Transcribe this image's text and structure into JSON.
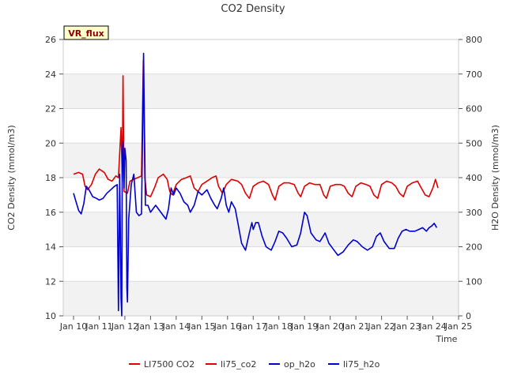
{
  "chart_data": {
    "type": "line",
    "title": "CO2 Density",
    "badge": "VR_flux",
    "xlabel": "Time",
    "ylabel_left": "CO2 Density (mmol/m3)",
    "ylabel_right": "H2O Density (mmol/m3)",
    "xlim": [
      9.6,
      25.0
    ],
    "ylim_left": [
      10,
      26
    ],
    "ylim_right": [
      0,
      800
    ],
    "x_ticks": [
      {
        "x": 10,
        "label": "Jan 10"
      },
      {
        "x": 11,
        "label": "Jan 11"
      },
      {
        "x": 12,
        "label": "Jan 12"
      },
      {
        "x": 13,
        "label": "Jan 13"
      },
      {
        "x": 14,
        "label": "Jan 14"
      },
      {
        "x": 15,
        "label": "Jan 15"
      },
      {
        "x": 16,
        "label": "Jan 16"
      },
      {
        "x": 17,
        "label": "Jan 17"
      },
      {
        "x": 18,
        "label": "Jan 18"
      },
      {
        "x": 19,
        "label": "Jan 19"
      },
      {
        "x": 20,
        "label": "Jan 20"
      },
      {
        "x": 21,
        "label": "Jan 21"
      },
      {
        "x": 22,
        "label": "Jan 22"
      },
      {
        "x": 23,
        "label": "Jan 23"
      },
      {
        "x": 24,
        "label": "Jan 24"
      },
      {
        "x": 25,
        "label": "Jan 25"
      }
    ],
    "y_ticks_left": [
      "10",
      "12",
      "14",
      "16",
      "18",
      "20",
      "22",
      "24",
      "26"
    ],
    "y_ticks_right": [
      "0",
      "100",
      "200",
      "300",
      "400",
      "500",
      "600",
      "700",
      "800"
    ],
    "legend_position": "bottom-center",
    "series": [
      {
        "name": "LI7500 CO2",
        "axis": "left",
        "color": "#dd0000",
        "points": []
      },
      {
        "name": "li75_co2",
        "axis": "left",
        "color": "#dd0000",
        "points": [
          [
            10.0,
            18.2
          ],
          [
            10.2,
            18.3
          ],
          [
            10.35,
            18.2
          ],
          [
            10.45,
            17.5
          ],
          [
            10.55,
            17.3
          ],
          [
            10.7,
            17.6
          ],
          [
            10.85,
            18.2
          ],
          [
            11.0,
            18.5
          ],
          [
            11.2,
            18.3
          ],
          [
            11.35,
            17.9
          ],
          [
            11.5,
            17.8
          ],
          [
            11.65,
            18.1
          ],
          [
            11.75,
            18.0
          ],
          [
            11.85,
            20.9
          ],
          [
            11.9,
            17.8
          ],
          [
            11.93,
            23.9
          ],
          [
            11.97,
            17.2
          ],
          [
            12.1,
            17.1
          ],
          [
            12.2,
            17.8
          ],
          [
            12.5,
            18.0
          ],
          [
            12.65,
            18.1
          ],
          [
            12.72,
            24.8
          ],
          [
            12.78,
            18.0
          ],
          [
            12.85,
            17.0
          ],
          [
            13.0,
            16.9
          ],
          [
            13.15,
            17.4
          ],
          [
            13.3,
            18.0
          ],
          [
            13.5,
            18.2
          ],
          [
            13.65,
            17.9
          ],
          [
            13.75,
            17.2
          ],
          [
            13.85,
            17.0
          ],
          [
            14.0,
            17.6
          ],
          [
            14.2,
            17.9
          ],
          [
            14.4,
            18.0
          ],
          [
            14.55,
            18.1
          ],
          [
            14.7,
            17.4
          ],
          [
            14.85,
            17.2
          ],
          [
            15.0,
            17.6
          ],
          [
            15.2,
            17.8
          ],
          [
            15.4,
            18.0
          ],
          [
            15.55,
            18.1
          ],
          [
            15.65,
            17.5
          ],
          [
            15.8,
            17.1
          ],
          [
            15.95,
            17.6
          ],
          [
            16.15,
            17.9
          ],
          [
            16.4,
            17.8
          ],
          [
            16.55,
            17.6
          ],
          [
            16.7,
            17.1
          ],
          [
            16.85,
            16.8
          ],
          [
            17.0,
            17.5
          ],
          [
            17.2,
            17.7
          ],
          [
            17.4,
            17.8
          ],
          [
            17.6,
            17.6
          ],
          [
            17.75,
            17.0
          ],
          [
            17.85,
            16.7
          ],
          [
            18.0,
            17.5
          ],
          [
            18.2,
            17.7
          ],
          [
            18.4,
            17.7
          ],
          [
            18.6,
            17.6
          ],
          [
            18.75,
            17.1
          ],
          [
            18.85,
            16.9
          ],
          [
            19.0,
            17.5
          ],
          [
            19.2,
            17.7
          ],
          [
            19.4,
            17.6
          ],
          [
            19.6,
            17.6
          ],
          [
            19.75,
            17.0
          ],
          [
            19.85,
            16.8
          ],
          [
            20.0,
            17.5
          ],
          [
            20.2,
            17.6
          ],
          [
            20.4,
            17.6
          ],
          [
            20.55,
            17.5
          ],
          [
            20.7,
            17.1
          ],
          [
            20.85,
            16.9
          ],
          [
            21.0,
            17.5
          ],
          [
            21.2,
            17.7
          ],
          [
            21.4,
            17.6
          ],
          [
            21.55,
            17.5
          ],
          [
            21.7,
            17.0
          ],
          [
            21.85,
            16.8
          ],
          [
            22.0,
            17.6
          ],
          [
            22.2,
            17.8
          ],
          [
            22.4,
            17.7
          ],
          [
            22.55,
            17.5
          ],
          [
            22.7,
            17.1
          ],
          [
            22.85,
            16.9
          ],
          [
            23.0,
            17.5
          ],
          [
            23.2,
            17.7
          ],
          [
            23.4,
            17.8
          ],
          [
            23.55,
            17.4
          ],
          [
            23.7,
            17.0
          ],
          [
            23.85,
            16.9
          ],
          [
            24.0,
            17.4
          ],
          [
            24.1,
            17.9
          ],
          [
            24.2,
            17.4
          ]
        ]
      },
      {
        "name": "op_h2o",
        "axis": "right",
        "color": "#0000cc",
        "points": []
      },
      {
        "name": "li75_h2o",
        "axis": "right",
        "color": "#0000cc",
        "points": [
          [
            10.0,
            355
          ],
          [
            10.1,
            330
          ],
          [
            10.2,
            305
          ],
          [
            10.3,
            295
          ],
          [
            10.4,
            325
          ],
          [
            10.5,
            375
          ],
          [
            10.6,
            365
          ],
          [
            10.75,
            345
          ],
          [
            10.9,
            340
          ],
          [
            11.0,
            335
          ],
          [
            11.15,
            340
          ],
          [
            11.3,
            355
          ],
          [
            11.45,
            365
          ],
          [
            11.6,
            375
          ],
          [
            11.7,
            380
          ],
          [
            11.75,
            15
          ],
          [
            11.8,
            410
          ],
          [
            11.85,
            50
          ],
          [
            11.88,
            0
          ],
          [
            11.9,
            480
          ],
          [
            11.93,
            505
          ],
          [
            11.97,
            370
          ],
          [
            12.0,
            485
          ],
          [
            12.05,
            450
          ],
          [
            12.08,
            80
          ],
          [
            12.1,
            40
          ],
          [
            12.15,
            280
          ],
          [
            12.25,
            380
          ],
          [
            12.35,
            410
          ],
          [
            12.45,
            300
          ],
          [
            12.55,
            290
          ],
          [
            12.65,
            295
          ],
          [
            12.73,
            760
          ],
          [
            12.8,
            320
          ],
          [
            12.9,
            320
          ],
          [
            13.0,
            300
          ],
          [
            13.1,
            310
          ],
          [
            13.2,
            320
          ],
          [
            13.35,
            305
          ],
          [
            13.5,
            290
          ],
          [
            13.6,
            280
          ],
          [
            13.7,
            310
          ],
          [
            13.8,
            370
          ],
          [
            13.9,
            350
          ],
          [
            14.0,
            370
          ],
          [
            14.15,
            355
          ],
          [
            14.3,
            330
          ],
          [
            14.45,
            320
          ],
          [
            14.55,
            300
          ],
          [
            14.7,
            320
          ],
          [
            14.85,
            360
          ],
          [
            15.0,
            350
          ],
          [
            15.2,
            365
          ],
          [
            15.35,
            340
          ],
          [
            15.5,
            320
          ],
          [
            15.6,
            310
          ],
          [
            15.75,
            340
          ],
          [
            15.85,
            370
          ],
          [
            15.95,
            320
          ],
          [
            16.05,
            300
          ],
          [
            16.15,
            330
          ],
          [
            16.3,
            310
          ],
          [
            16.4,
            270
          ],
          [
            16.55,
            210
          ],
          [
            16.7,
            190
          ],
          [
            16.85,
            240
          ],
          [
            16.95,
            270
          ],
          [
            17.0,
            250
          ],
          [
            17.1,
            270
          ],
          [
            17.2,
            270
          ],
          [
            17.35,
            230
          ],
          [
            17.5,
            200
          ],
          [
            17.7,
            190
          ],
          [
            17.85,
            215
          ],
          [
            18.0,
            245
          ],
          [
            18.15,
            240
          ],
          [
            18.3,
            225
          ],
          [
            18.5,
            200
          ],
          [
            18.7,
            205
          ],
          [
            18.85,
            240
          ],
          [
            19.0,
            300
          ],
          [
            19.1,
            290
          ],
          [
            19.25,
            240
          ],
          [
            19.45,
            220
          ],
          [
            19.6,
            215
          ],
          [
            19.8,
            240
          ],
          [
            19.95,
            210
          ],
          [
            20.1,
            195
          ],
          [
            20.3,
            175
          ],
          [
            20.5,
            185
          ],
          [
            20.7,
            205
          ],
          [
            20.9,
            220
          ],
          [
            21.05,
            215
          ],
          [
            21.25,
            200
          ],
          [
            21.45,
            190
          ],
          [
            21.65,
            200
          ],
          [
            21.8,
            230
          ],
          [
            21.95,
            240
          ],
          [
            22.1,
            215
          ],
          [
            22.3,
            195
          ],
          [
            22.5,
            195
          ],
          [
            22.65,
            225
          ],
          [
            22.8,
            245
          ],
          [
            22.95,
            250
          ],
          [
            23.1,
            245
          ],
          [
            23.3,
            245
          ],
          [
            23.45,
            250
          ],
          [
            23.6,
            255
          ],
          [
            23.75,
            245
          ],
          [
            23.85,
            255
          ],
          [
            23.95,
            260
          ],
          [
            24.05,
            268
          ],
          [
            24.15,
            255
          ]
        ]
      }
    ]
  }
}
